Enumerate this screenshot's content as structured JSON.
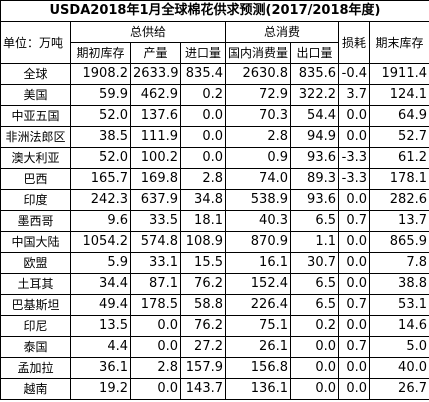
{
  "title": "USDA2018年1月全球棉花供求预测(2017/2018年度)",
  "header": {
    "unit": "单位：万吨",
    "supply": "总供给",
    "consumption": "总消费",
    "loss": "损耗",
    "ending_stock": "期末库存",
    "sub": [
      "期初库存",
      "产量",
      "进口量",
      "国内消费量",
      "出口量"
    ]
  },
  "table": {
    "rows": [
      [
        "全球",
        "1908.2",
        "2633.9",
        "835.4",
        "2630.8",
        "835.6",
        "-0.4",
        "1911.4"
      ],
      [
        "美国",
        "59.9",
        "462.9",
        "0.2",
        "72.9",
        "322.2",
        "3.7",
        "124.1"
      ],
      [
        "中亚五国",
        "52.0",
        "137.6",
        "0.0",
        "70.3",
        "54.4",
        "0.0",
        "64.9"
      ],
      [
        "非洲法郎区",
        "38.5",
        "111.9",
        "0.0",
        "2.8",
        "94.9",
        "0.0",
        "52.7"
      ],
      [
        "澳大利亚",
        "52.0",
        "100.2",
        "0.0",
        "0.9",
        "93.6",
        "-3.3",
        "61.2"
      ],
      [
        "巴西",
        "165.7",
        "169.8",
        "2.8",
        "74.0",
        "89.3",
        "-3.3",
        "178.1"
      ],
      [
        "印度",
        "242.3",
        "637.9",
        "34.8",
        "538.9",
        "93.6",
        "0.0",
        "282.6"
      ],
      [
        "墨西哥",
        "9.6",
        "33.5",
        "18.1",
        "40.3",
        "6.5",
        "0.7",
        "13.7"
      ],
      [
        "中国大陆",
        "1054.2",
        "574.8",
        "108.9",
        "870.9",
        "1.1",
        "0.0",
        "865.9"
      ],
      [
        "欧盟",
        "5.9",
        "33.1",
        "15.5",
        "16.1",
        "30.7",
        "0.0",
        "7.8"
      ],
      [
        "土耳其",
        "34.4",
        "87.1",
        "76.2",
        "152.4",
        "6.5",
        "0.0",
        "38.8"
      ],
      [
        "巴基斯坦",
        "49.4",
        "178.5",
        "58.8",
        "226.4",
        "6.5",
        "0.7",
        "53.1"
      ],
      [
        "印尼",
        "13.5",
        "0.0",
        "76.2",
        "75.1",
        "0.2",
        "0.0",
        "14.6"
      ],
      [
        "泰国",
        "4.4",
        "0.0",
        "27.2",
        "26.1",
        "0.0",
        "0.7",
        "5.0"
      ],
      [
        "孟加拉",
        "36.1",
        "2.8",
        "157.9",
        "156.8",
        "0.0",
        "0.0",
        "40.0"
      ],
      [
        "越南",
        "19.2",
        "0.0",
        "143.7",
        "136.1",
        "0.0",
        "0.0",
        "26.7"
      ]
    ]
  }
}
